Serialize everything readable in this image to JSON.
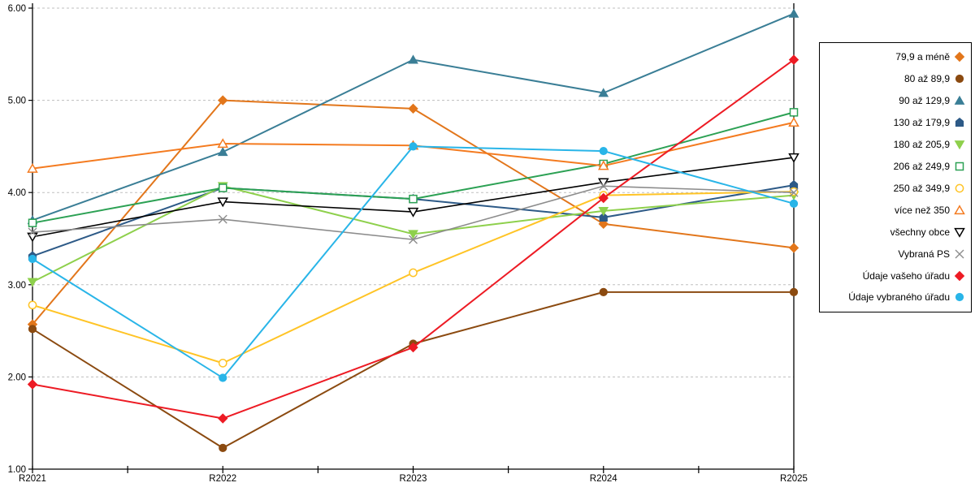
{
  "chart_data": {
    "type": "line",
    "title": "",
    "xlabel": "",
    "ylabel": "",
    "x_categories": [
      "R2021",
      "R2022",
      "R2023",
      "R2024",
      "R2025"
    ],
    "ylim": [
      1.0,
      6.0
    ],
    "y_tick_labels": [
      "1.00",
      "2.00",
      "3.00",
      "4.00",
      "5.00",
      "6.00"
    ],
    "grid": "horizontal-dashed",
    "legend_position": "right",
    "colors": {
      "gridline": "#bfbfbf",
      "axis": "#000000",
      "background": "#ffffff"
    },
    "series": [
      {
        "name": "79,9 a méně",
        "color": "#e2761b",
        "marker": "diamond",
        "filled": true,
        "values": [
          2.57,
          5.0,
          4.91,
          3.66,
          3.4
        ]
      },
      {
        "name": "80 až 89,9",
        "color": "#8b4a10",
        "marker": "circle",
        "filled": true,
        "values": [
          2.52,
          1.23,
          2.36,
          2.92,
          2.92
        ]
      },
      {
        "name": "90 až 129,9",
        "color": "#3a7e96",
        "marker": "triangle-up",
        "filled": true,
        "values": [
          3.7,
          4.44,
          5.44,
          5.08,
          5.94
        ]
      },
      {
        "name": "130 až 179,9",
        "color": "#2d5a87",
        "marker": "pentagon",
        "filled": true,
        "values": [
          3.31,
          4.05,
          3.93,
          3.73,
          4.08
        ]
      },
      {
        "name": "180 až 205,9",
        "color": "#8ed04c",
        "marker": "triangle-down",
        "filled": true,
        "values": [
          3.03,
          4.07,
          3.55,
          3.8,
          3.97
        ]
      },
      {
        "name": "206 až 249,9",
        "color": "#2ca154",
        "marker": "square",
        "filled": false,
        "values": [
          3.67,
          4.05,
          3.93,
          4.31,
          4.87
        ]
      },
      {
        "name": "250 až 349,9",
        "color": "#ffc426",
        "marker": "circle",
        "filled": false,
        "values": [
          2.78,
          2.15,
          3.13,
          3.97,
          4.01
        ]
      },
      {
        "name": "více než 350",
        "color": "#f47b20",
        "marker": "triangle-up",
        "filled": false,
        "values": [
          4.26,
          4.53,
          4.51,
          4.29,
          4.76
        ]
      },
      {
        "name": "všechny obce",
        "color": "#000000",
        "marker": "triangle-down",
        "filled": false,
        "values": [
          3.52,
          3.9,
          3.79,
          4.11,
          4.38
        ]
      },
      {
        "name": "Vybraná PS",
        "color": "#8c8c8c",
        "marker": "x",
        "filled": false,
        "values": [
          3.57,
          3.71,
          3.49,
          4.07,
          4.0
        ]
      },
      {
        "name": "Údaje vašeho úřadu",
        "color": "#ed1b24",
        "marker": "diamond",
        "filled": true,
        "values": [
          1.92,
          1.55,
          2.32,
          3.94,
          5.44
        ]
      },
      {
        "name": "Údaje vybraného úřadu",
        "color": "#29b5e8",
        "marker": "circle",
        "filled": true,
        "values": [
          3.28,
          1.99,
          4.5,
          4.45,
          3.88
        ]
      }
    ]
  }
}
